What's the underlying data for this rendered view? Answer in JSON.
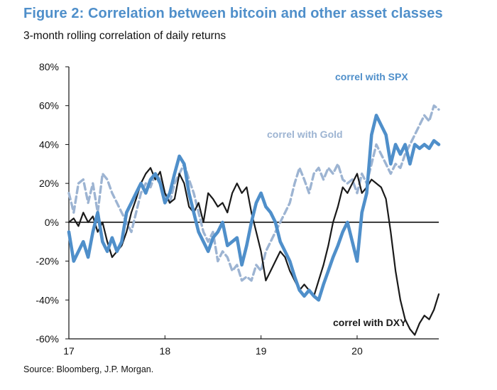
{
  "chart_data": {
    "type": "line",
    "title": "Figure 2: Correlation between bitcoin and other asset classes",
    "subtitle": "3-month rolling correlation of daily returns",
    "source": "Source: Bloomberg, J.P. Morgan.",
    "xlabel": "",
    "ylabel": "",
    "x_range": [
      2017.0,
      2020.85
    ],
    "ylim": [
      -60,
      80
    ],
    "y_ticks": [
      80,
      60,
      40,
      20,
      0,
      -20,
      -40,
      -60
    ],
    "y_tick_labels": [
      "80%",
      "60%",
      "40%",
      "20%",
      "0%",
      "-20%",
      "-40%",
      "-60%"
    ],
    "x_ticks": [
      2017,
      2018,
      2019,
      2020
    ],
    "x_tick_labels": [
      "17",
      "18",
      "19",
      "20"
    ],
    "grid": false,
    "series": [
      {
        "name": "correl with SPX",
        "label": "correl with SPX",
        "color": "#4f8fca",
        "style": "solid",
        "x": [
          2017.0,
          2017.05,
          2017.1,
          2017.15,
          2017.2,
          2017.25,
          2017.3,
          2017.35,
          2017.4,
          2017.45,
          2017.5,
          2017.55,
          2017.6,
          2017.65,
          2017.7,
          2017.75,
          2017.8,
          2017.85,
          2017.9,
          2017.95,
          2018.0,
          2018.05,
          2018.1,
          2018.15,
          2018.2,
          2018.25,
          2018.3,
          2018.35,
          2018.4,
          2018.45,
          2018.5,
          2018.55,
          2018.6,
          2018.65,
          2018.7,
          2018.75,
          2018.8,
          2018.85,
          2018.9,
          2018.95,
          2019.0,
          2019.05,
          2019.1,
          2019.15,
          2019.2,
          2019.25,
          2019.3,
          2019.35,
          2019.4,
          2019.45,
          2019.5,
          2019.55,
          2019.6,
          2019.65,
          2019.7,
          2019.75,
          2019.8,
          2019.85,
          2019.9,
          2019.95,
          2020.0,
          2020.05,
          2020.1,
          2020.15,
          2020.2,
          2020.25,
          2020.3,
          2020.35,
          2020.4,
          2020.45,
          2020.5,
          2020.55,
          2020.6,
          2020.65,
          2020.7,
          2020.75,
          2020.8,
          2020.85
        ],
        "values": [
          -5,
          -20,
          -15,
          -10,
          -18,
          -5,
          5,
          -10,
          -15,
          -8,
          -15,
          -10,
          5,
          10,
          15,
          20,
          15,
          22,
          25,
          20,
          10,
          15,
          25,
          34,
          30,
          15,
          5,
          -5,
          -10,
          -15,
          -8,
          -5,
          0,
          -12,
          -10,
          -8,
          -22,
          -12,
          0,
          10,
          15,
          8,
          5,
          0,
          -10,
          -15,
          -20,
          -28,
          -35,
          -38,
          -35,
          -38,
          -40,
          -32,
          -25,
          -18,
          -12,
          -5,
          0,
          -10,
          -20,
          5,
          15,
          45,
          55,
          50,
          45,
          30,
          40,
          35,
          40,
          30,
          40,
          38,
          40,
          38,
          42,
          40
        ]
      },
      {
        "name": "correl with Gold",
        "label": "correl with Gold",
        "color": "#9db4d2",
        "style": "dashed",
        "x": [
          2017.0,
          2017.05,
          2017.1,
          2017.15,
          2017.2,
          2017.25,
          2017.3,
          2017.35,
          2017.4,
          2017.45,
          2017.5,
          2017.55,
          2017.6,
          2017.65,
          2017.7,
          2017.75,
          2017.8,
          2017.85,
          2017.9,
          2017.95,
          2018.0,
          2018.05,
          2018.1,
          2018.15,
          2018.2,
          2018.25,
          2018.3,
          2018.35,
          2018.4,
          2018.45,
          2018.5,
          2018.55,
          2018.6,
          2018.65,
          2018.7,
          2018.75,
          2018.8,
          2018.85,
          2018.9,
          2018.95,
          2019.0,
          2019.05,
          2019.1,
          2019.15,
          2019.2,
          2019.25,
          2019.3,
          2019.35,
          2019.4,
          2019.45,
          2019.5,
          2019.55,
          2019.6,
          2019.65,
          2019.7,
          2019.75,
          2019.8,
          2019.85,
          2019.9,
          2019.95,
          2020.0,
          2020.05,
          2020.1,
          2020.15,
          2020.2,
          2020.25,
          2020.3,
          2020.35,
          2020.4,
          2020.45,
          2020.5,
          2020.55,
          2020.6,
          2020.65,
          2020.7,
          2020.75,
          2020.8,
          2020.85
        ],
        "values": [
          15,
          5,
          20,
          22,
          10,
          20,
          5,
          25,
          22,
          15,
          10,
          5,
          0,
          -5,
          5,
          15,
          20,
          18,
          25,
          22,
          15,
          10,
          20,
          25,
          30,
          22,
          15,
          5,
          -5,
          -10,
          -5,
          -20,
          -15,
          -18,
          -25,
          -22,
          -30,
          -28,
          -30,
          -22,
          -25,
          -15,
          -10,
          -5,
          0,
          5,
          10,
          20,
          28,
          22,
          15,
          25,
          28,
          22,
          28,
          25,
          30,
          22,
          20,
          22,
          15,
          25,
          20,
          30,
          40,
          35,
          30,
          25,
          30,
          28,
          35,
          40,
          45,
          50,
          55,
          52,
          60,
          58
        ]
      },
      {
        "name": "correl with DXY",
        "label": "correl with DXY",
        "color": "#1a1a1a",
        "style": "solid",
        "x": [
          2017.0,
          2017.05,
          2017.1,
          2017.15,
          2017.2,
          2017.25,
          2017.3,
          2017.35,
          2017.4,
          2017.45,
          2017.5,
          2017.55,
          2017.6,
          2017.65,
          2017.7,
          2017.75,
          2017.8,
          2017.85,
          2017.9,
          2017.95,
          2018.0,
          2018.05,
          2018.1,
          2018.15,
          2018.2,
          2018.25,
          2018.3,
          2018.35,
          2018.4,
          2018.45,
          2018.5,
          2018.55,
          2018.6,
          2018.65,
          2018.7,
          2018.75,
          2018.8,
          2018.85,
          2018.9,
          2018.95,
          2019.0,
          2019.05,
          2019.1,
          2019.15,
          2019.2,
          2019.25,
          2019.3,
          2019.35,
          2019.4,
          2019.45,
          2019.5,
          2019.55,
          2019.6,
          2019.65,
          2019.7,
          2019.75,
          2019.8,
          2019.85,
          2019.9,
          2019.95,
          2020.0,
          2020.05,
          2020.1,
          2020.15,
          2020.2,
          2020.25,
          2020.3,
          2020.35,
          2020.4,
          2020.45,
          2020.5,
          2020.55,
          2020.6,
          2020.65,
          2020.7,
          2020.75,
          2020.8,
          2020.85
        ],
        "values": [
          0,
          2,
          -2,
          5,
          0,
          3,
          -5,
          0,
          -10,
          -18,
          -15,
          -12,
          -5,
          5,
          12,
          20,
          25,
          28,
          22,
          26,
          15,
          10,
          12,
          25,
          20,
          8,
          5,
          10,
          0,
          15,
          12,
          8,
          10,
          5,
          15,
          20,
          15,
          18,
          5,
          -5,
          -15,
          -30,
          -25,
          -20,
          -15,
          -18,
          -25,
          -30,
          -35,
          -32,
          -35,
          -38,
          -30,
          -22,
          -12,
          0,
          8,
          18,
          15,
          20,
          25,
          15,
          18,
          22,
          20,
          18,
          12,
          -5,
          -25,
          -40,
          -50,
          -55,
          -58,
          -52,
          -48,
          -50,
          -45,
          -37
        ]
      }
    ]
  }
}
